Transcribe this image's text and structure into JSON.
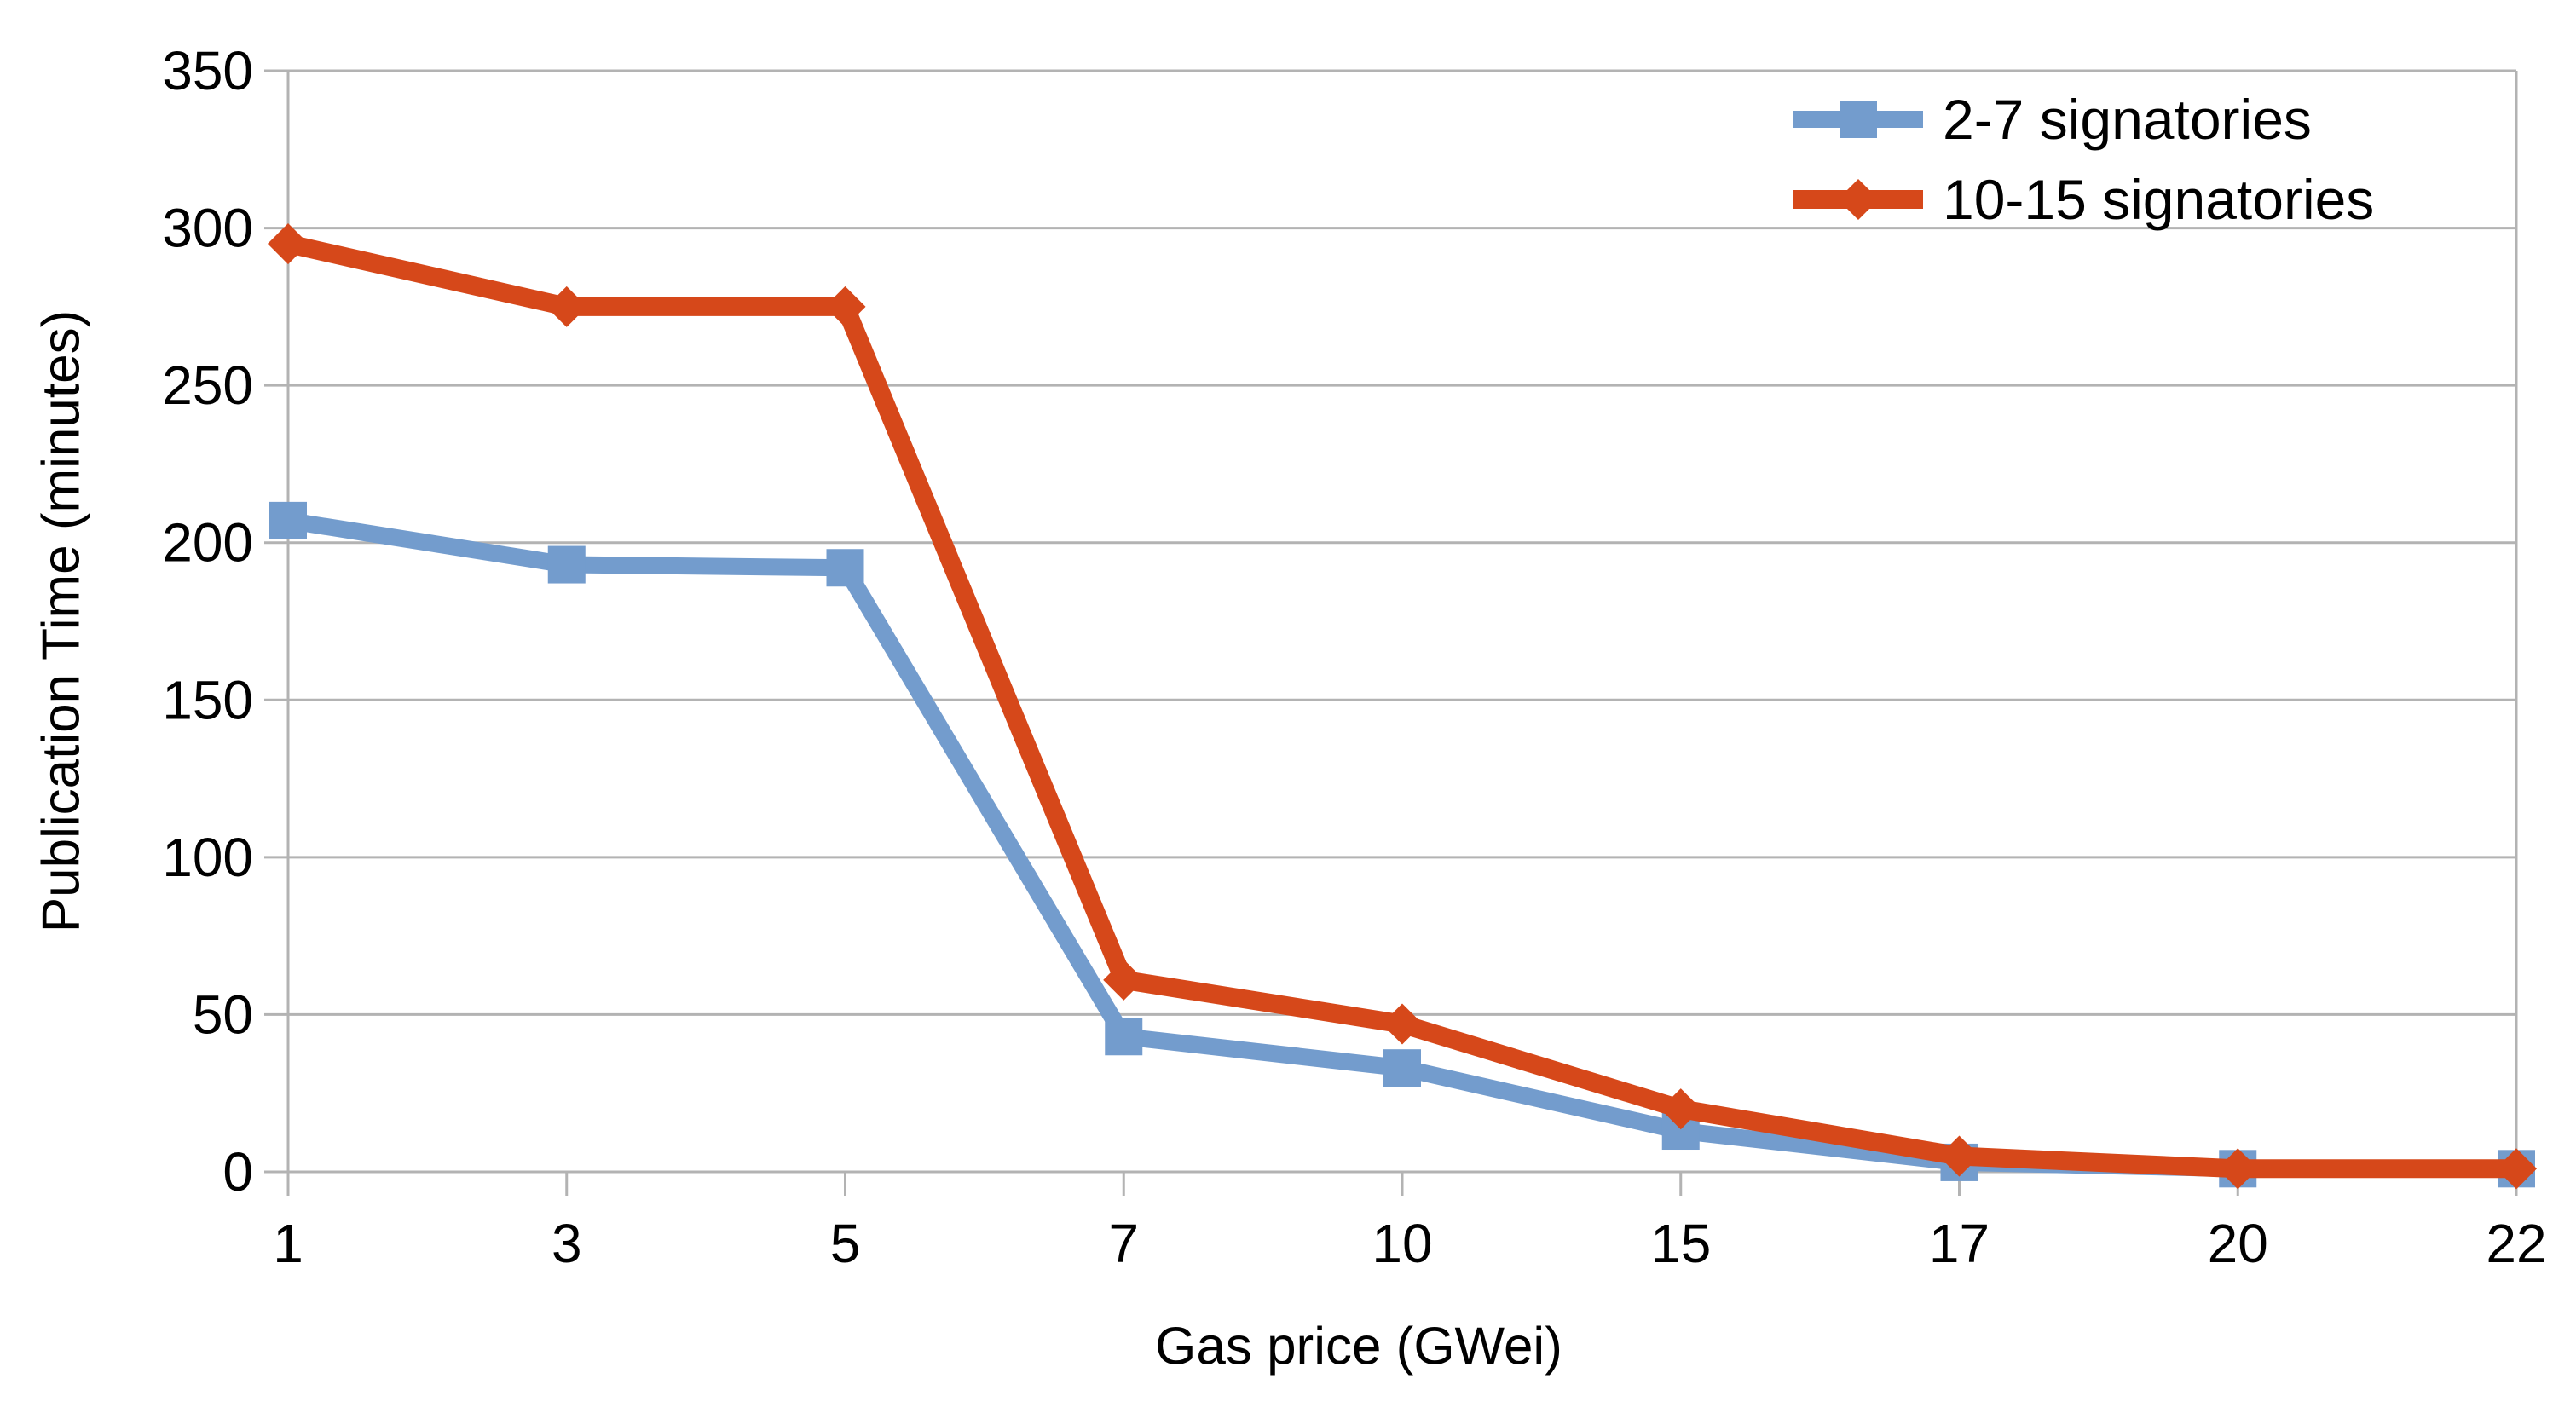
{
  "chart_data": {
    "type": "line",
    "title": "",
    "xlabel": "Gas price (GWei)",
    "ylabel": "Publication Time (minutes)",
    "categories": [
      "1",
      "3",
      "5",
      "7",
      "10",
      "15",
      "17",
      "20",
      "22"
    ],
    "series": [
      {
        "name": "2-7 signatories",
        "marker": "square",
        "color": "#739ccd",
        "values": [
          207,
          193,
          192,
          43,
          33,
          13,
          3,
          1,
          1
        ]
      },
      {
        "name": "10-15 signatories",
        "marker": "diamond",
        "color": "#d6481a",
        "values": [
          295,
          275,
          275,
          61,
          47,
          20,
          5,
          1,
          1
        ]
      }
    ],
    "ylim": [
      0,
      350
    ],
    "ytick_step": 50,
    "y_tick_labels": [
      "0",
      "50",
      "100",
      "150",
      "200",
      "250",
      "300",
      "350"
    ],
    "grid": "horizontal",
    "grid_color": "#b3b3b3",
    "axis_color": "#b3b3b3",
    "text_color": "#000000",
    "background_color": "#ffffff",
    "legend_position": "top-right"
  }
}
